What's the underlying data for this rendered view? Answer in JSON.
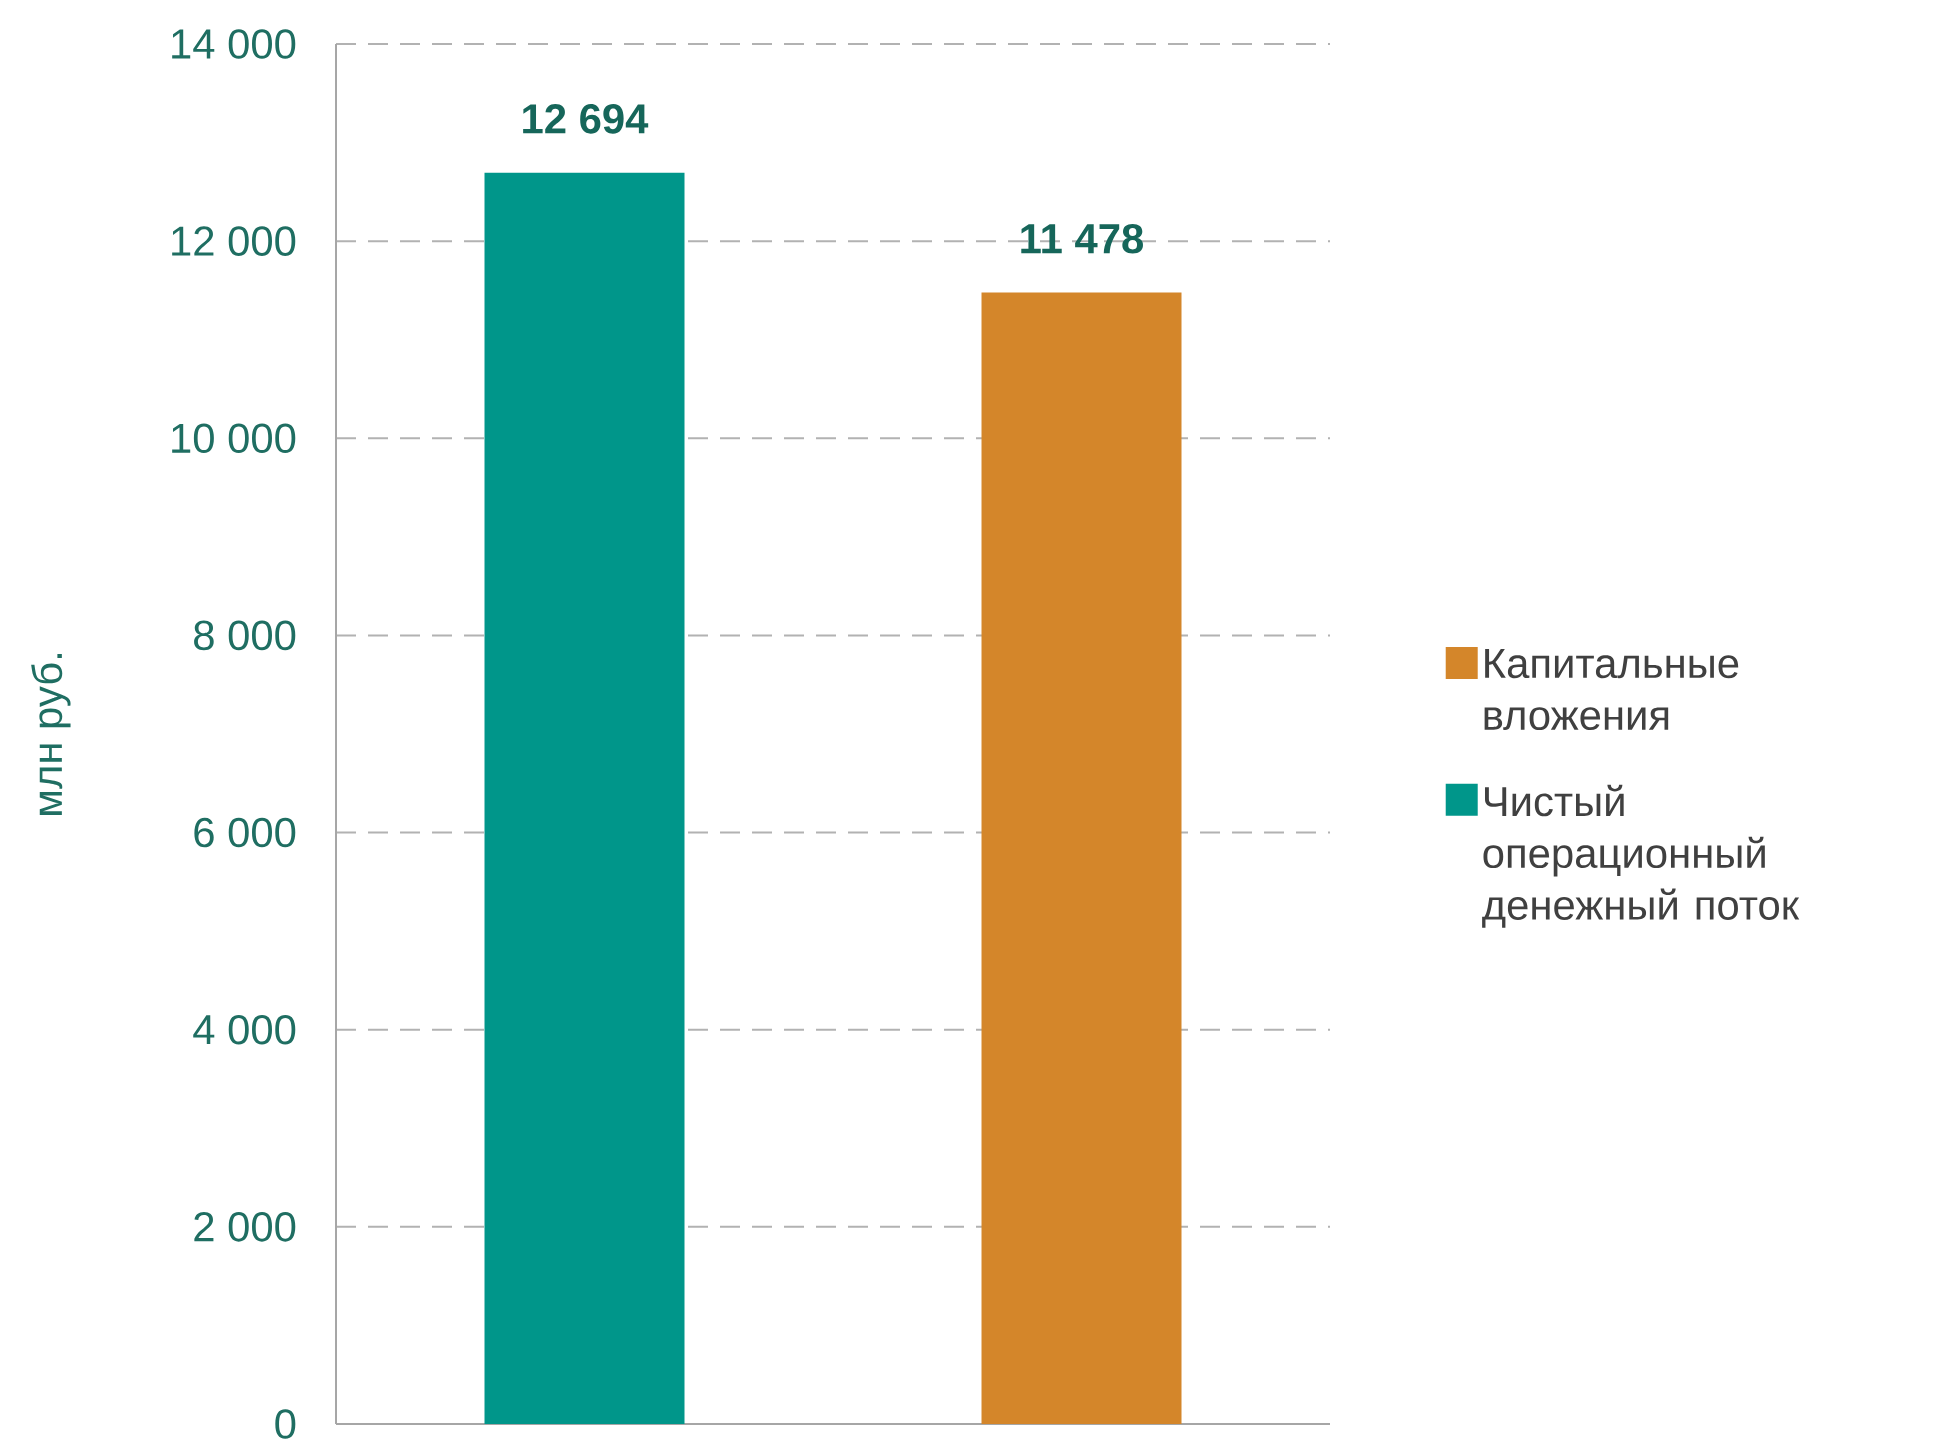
{
  "chart_data": {
    "type": "bar",
    "ylabel": "млн руб.",
    "categories": [
      null,
      null
    ],
    "series": [
      {
        "name": "Капитальные вложения",
        "color": "#d4862a",
        "values": [
          null,
          11478
        ],
        "value_labels": [
          null,
          "11 478"
        ]
      },
      {
        "name": "Чистый операционный денежный поток",
        "color": "#00968a",
        "values": [
          12694,
          null
        ],
        "value_labels": [
          "12 694",
          null
        ]
      }
    ],
    "ylim": [
      0,
      14000
    ],
    "yticks": [
      {
        "value": 0,
        "label": "0"
      },
      {
        "value": 2000,
        "label": "2 000"
      },
      {
        "value": 4000,
        "label": "4 000"
      },
      {
        "value": 6000,
        "label": "6 000"
      },
      {
        "value": 8000,
        "label": "8 000"
      },
      {
        "value": 10000,
        "label": "10 000"
      },
      {
        "value": 12000,
        "label": "12 000"
      },
      {
        "value": 14000,
        "label": "14 000"
      }
    ],
    "grid": "y",
    "legend": "right"
  }
}
